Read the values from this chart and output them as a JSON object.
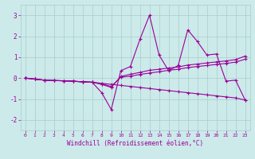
{
  "title": "",
  "xlabel": "Windchill (Refroidissement éolien,°C)",
  "xlim": [
    -0.5,
    23.5
  ],
  "ylim": [
    -2.5,
    3.5
  ],
  "xticks": [
    0,
    1,
    2,
    3,
    4,
    5,
    6,
    7,
    8,
    9,
    10,
    11,
    12,
    13,
    14,
    15,
    16,
    17,
    18,
    19,
    20,
    21,
    22,
    23
  ],
  "yticks": [
    -2,
    -1,
    0,
    1,
    2,
    3
  ],
  "bg_color": "#cceaea",
  "grid_color": "#aacccc",
  "line_color": "#990099",
  "lines": [
    {
      "x": [
        0,
        1,
        2,
        3,
        4,
        5,
        6,
        7,
        8,
        9,
        10,
        11,
        12,
        13,
        14,
        15,
        16,
        17,
        18,
        19,
        20,
        21,
        22,
        23
      ],
      "y": [
        0,
        -0.05,
        -0.1,
        -0.12,
        -0.13,
        -0.15,
        -0.18,
        -0.2,
        -0.25,
        -0.3,
        -0.35,
        -0.4,
        -0.45,
        -0.5,
        -0.55,
        -0.6,
        -0.65,
        -0.7,
        -0.75,
        -0.8,
        -0.85,
        -0.9,
        -0.95,
        -1.05
      ]
    },
    {
      "x": [
        0,
        1,
        2,
        3,
        4,
        5,
        6,
        7,
        8,
        9,
        10,
        11,
        12,
        13,
        14,
        15,
        16,
        17,
        18,
        19,
        20,
        21,
        22,
        23
      ],
      "y": [
        0,
        -0.05,
        -0.1,
        -0.12,
        -0.13,
        -0.15,
        -0.18,
        -0.2,
        -0.7,
        -1.5,
        0.35,
        0.55,
        1.85,
        3.0,
        1.1,
        0.35,
        0.6,
        2.3,
        1.75,
        1.1,
        1.15,
        -0.15,
        -0.1,
        -1.05
      ]
    },
    {
      "x": [
        0,
        1,
        2,
        3,
        4,
        5,
        6,
        7,
        8,
        9,
        10,
        11,
        12,
        13,
        14,
        15,
        16,
        17,
        18,
        19,
        20,
        21,
        22,
        23
      ],
      "y": [
        0,
        -0.05,
        -0.1,
        -0.12,
        -0.13,
        -0.15,
        -0.18,
        -0.2,
        -0.3,
        -0.45,
        0.08,
        0.18,
        0.27,
        0.37,
        0.42,
        0.48,
        0.53,
        0.62,
        0.67,
        0.72,
        0.77,
        0.82,
        0.88,
        1.05
      ]
    },
    {
      "x": [
        0,
        1,
        2,
        3,
        4,
        5,
        6,
        7,
        8,
        9,
        10,
        11,
        12,
        13,
        14,
        15,
        16,
        17,
        18,
        19,
        20,
        21,
        22,
        23
      ],
      "y": [
        0,
        -0.05,
        -0.1,
        -0.12,
        -0.13,
        -0.15,
        -0.18,
        -0.2,
        -0.28,
        -0.4,
        0.04,
        0.09,
        0.17,
        0.24,
        0.3,
        0.37,
        0.42,
        0.5,
        0.55,
        0.6,
        0.65,
        0.7,
        0.76,
        0.9
      ]
    }
  ]
}
